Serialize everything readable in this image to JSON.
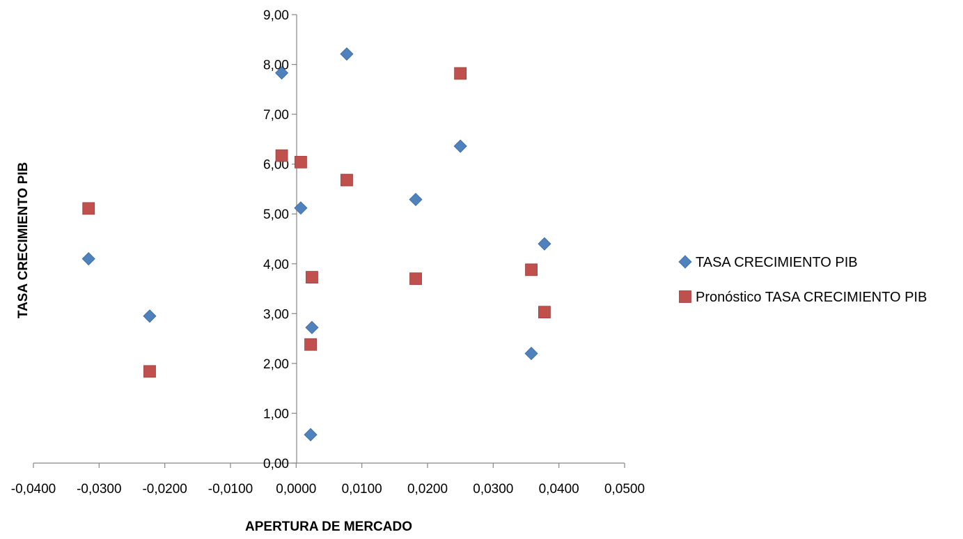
{
  "chart_data": {
    "type": "scatter",
    "xlabel": "APERTURA DE MERCADO",
    "ylabel": "TASA CRECIMIENTO PIB",
    "xlim": [
      -0.04,
      0.05
    ],
    "ylim": [
      0,
      9
    ],
    "x_ticks": [
      -0.04,
      -0.03,
      -0.02,
      -0.01,
      0.0,
      0.01,
      0.02,
      0.03,
      0.04,
      0.05
    ],
    "x_tick_labels": [
      "-0,0400",
      "-0,0300",
      "-0,0200",
      "-0,0100",
      "0,0000",
      "0,0100",
      "0,0200",
      "0,0300",
      "0,0400",
      "0,0500"
    ],
    "y_ticks": [
      0,
      1,
      2,
      3,
      4,
      5,
      6,
      7,
      8,
      9
    ],
    "y_tick_labels": [
      "0,00",
      "1,00",
      "2,00",
      "3,00",
      "4,00",
      "5,00",
      "6,00",
      "7,00",
      "8,00",
      "9,00"
    ],
    "grid": false,
    "legend_position": "right",
    "series": [
      {
        "name": "TASA CRECIMIENTO PIB",
        "marker": "diamond",
        "color": "#4F81BD",
        "points": [
          {
            "x": -0.0316,
            "y": 4.1
          },
          {
            "x": -0.0223,
            "y": 2.95
          },
          {
            "x": -0.0022,
            "y": 7.83
          },
          {
            "x": 0.0007,
            "y": 5.12
          },
          {
            "x": 0.0022,
            "y": 0.57
          },
          {
            "x": 0.0024,
            "y": 2.72
          },
          {
            "x": 0.0077,
            "y": 8.21
          },
          {
            "x": 0.0182,
            "y": 5.29
          },
          {
            "x": 0.025,
            "y": 6.36
          },
          {
            "x": 0.0358,
            "y": 2.2
          },
          {
            "x": 0.0378,
            "y": 4.4
          }
        ]
      },
      {
        "name": "Pronóstico TASA CRECIMIENTO PIB",
        "marker": "square",
        "color": "#C0504D",
        "points": [
          {
            "x": -0.0316,
            "y": 5.11
          },
          {
            "x": -0.0223,
            "y": 1.84
          },
          {
            "x": -0.0022,
            "y": 6.17
          },
          {
            "x": 0.0007,
            "y": 6.04
          },
          {
            "x": 0.0022,
            "y": 2.38
          },
          {
            "x": 0.0024,
            "y": 3.73
          },
          {
            "x": 0.0077,
            "y": 5.68
          },
          {
            "x": 0.0182,
            "y": 3.7
          },
          {
            "x": 0.025,
            "y": 7.82
          },
          {
            "x": 0.0358,
            "y": 3.88
          },
          {
            "x": 0.0378,
            "y": 3.03
          }
        ]
      }
    ]
  }
}
